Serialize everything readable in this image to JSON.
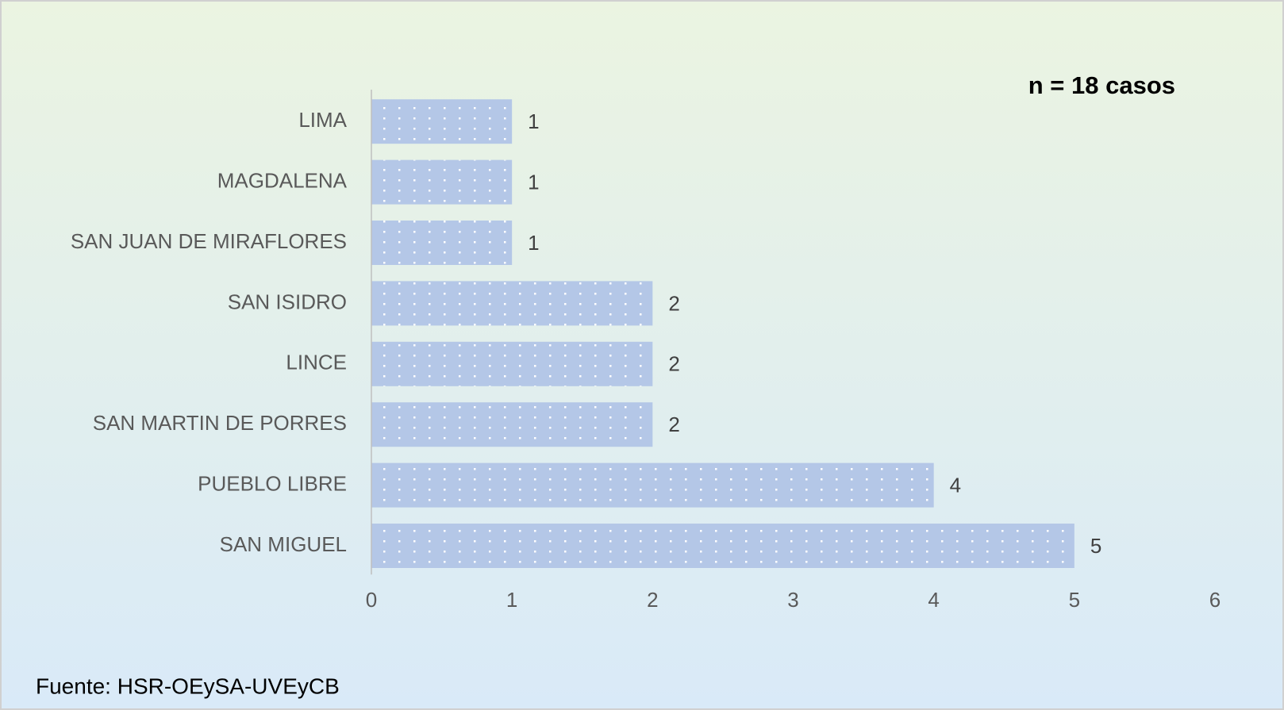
{
  "chart_data": {
    "type": "bar",
    "orientation": "horizontal",
    "annotation": "n = 18 casos",
    "source": "Fuente:  HSR-OEySA-UVEyCB",
    "categories": [
      "LIMA",
      "MAGDALENA",
      "SAN JUAN DE MIRAFLORES",
      "SAN ISIDRO",
      "LINCE",
      "SAN MARTIN DE PORRES",
      "PUEBLO LIBRE",
      "SAN MIGUEL"
    ],
    "values": [
      1,
      1,
      1,
      2,
      2,
      2,
      4,
      5
    ],
    "color": "#b4c7e7",
    "xlim": [
      0,
      6
    ],
    "xticks": [
      0,
      1,
      2,
      3,
      4,
      5,
      6
    ],
    "grid": false
  }
}
